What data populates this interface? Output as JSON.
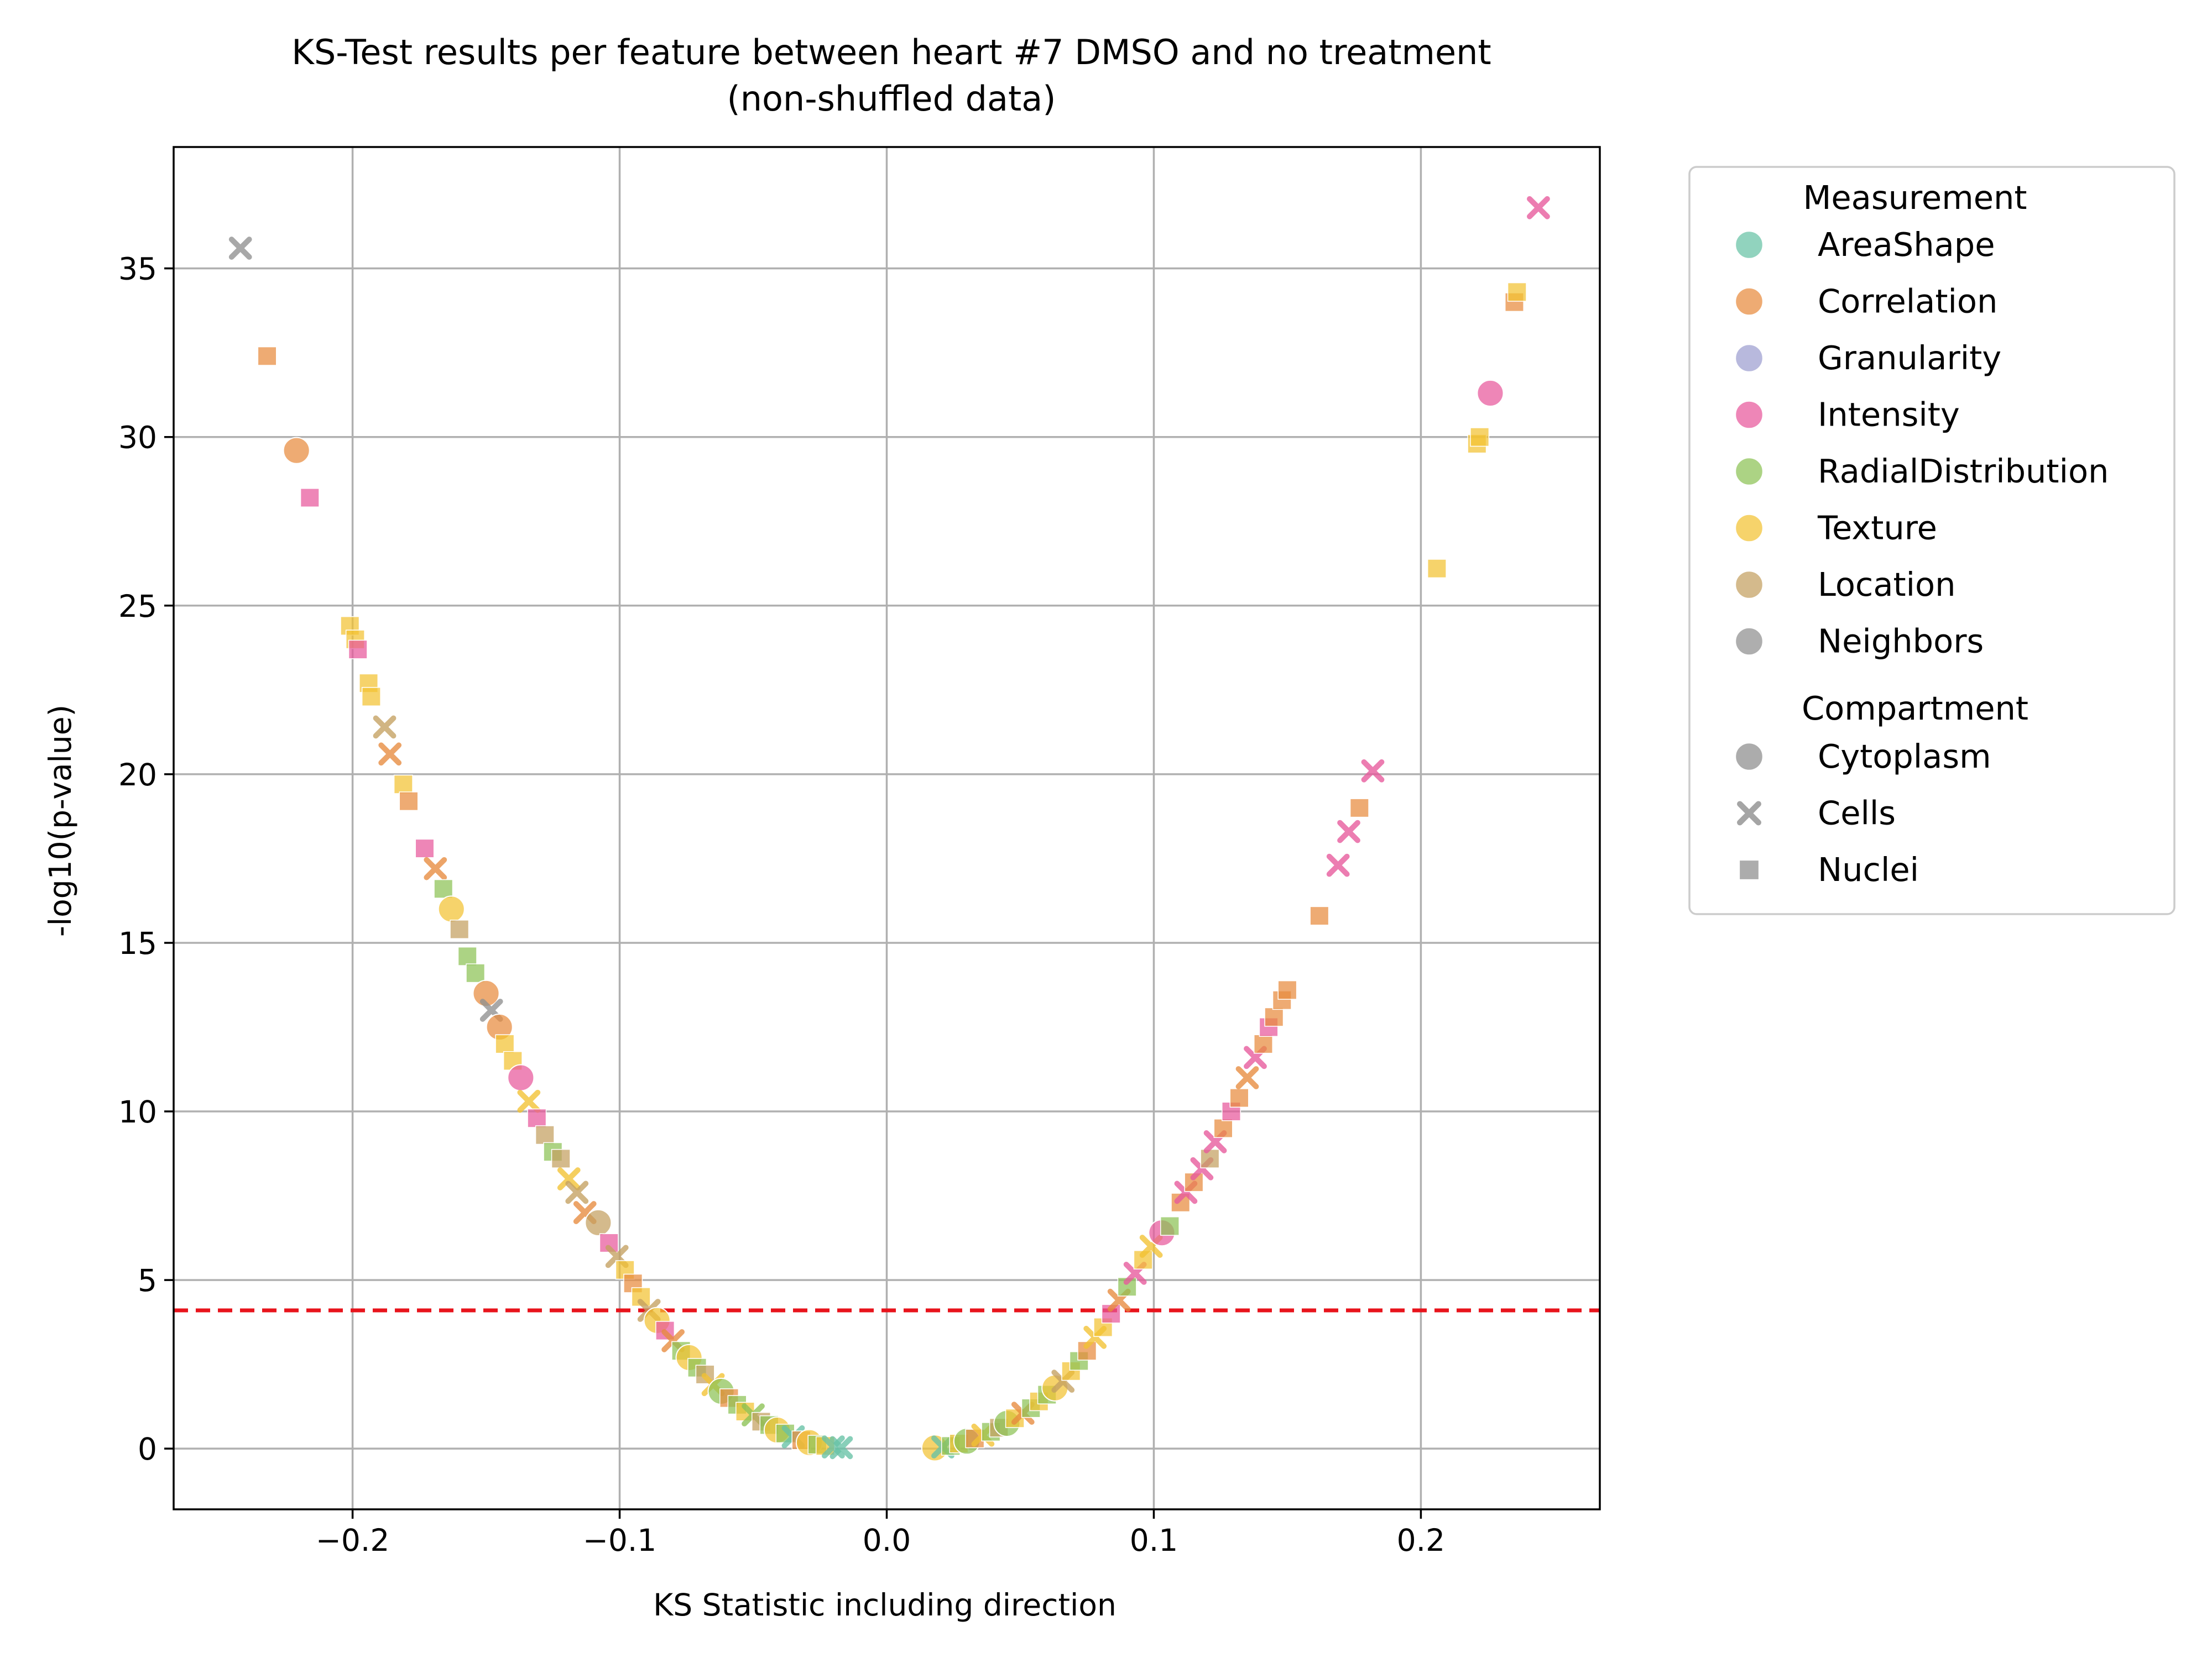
{
  "chart_data": {
    "type": "scatter",
    "title": "KS-Test results per feature between heart #7 DMSO and no treatment",
    "subtitle": "(non-shuffled data)",
    "xlabel": "KS Statistic including direction",
    "ylabel": "-log10(p-value)",
    "xlim": [
      -0.267,
      0.267
    ],
    "ylim": [
      -1.8,
      38.6
    ],
    "xticks": [
      -0.2,
      -0.1,
      0.0,
      0.1,
      0.2
    ],
    "xtick_labels": [
      "−0.2",
      "−0.1",
      "0.0",
      "0.1",
      "0.2"
    ],
    "yticks": [
      0,
      5,
      10,
      15,
      20,
      25,
      30,
      35
    ],
    "ytick_labels": [
      "0",
      "5",
      "10",
      "15",
      "20",
      "25",
      "30",
      "35"
    ],
    "grid": true,
    "threshold_line": {
      "y": 4.1,
      "color": "#e8141c",
      "style": "dashed"
    },
    "legend": {
      "placement": "outside-right",
      "measurement_title": "Measurement",
      "measurements": [
        {
          "name": "AreaShape",
          "color": "#66c2a5"
        },
        {
          "name": "Correlation",
          "color": "#e78a3d"
        },
        {
          "name": "Granularity",
          "color": "#9c9ed0"
        },
        {
          "name": "Intensity",
          "color": "#e7589b"
        },
        {
          "name": "RadialDistribution",
          "color": "#8cc255"
        },
        {
          "name": "Texture",
          "color": "#f2c232"
        },
        {
          "name": "Location",
          "color": "#c4a060"
        },
        {
          "name": "Neighbors",
          "color": "#8f8f8f"
        }
      ],
      "compartment_title": "Compartment",
      "compartments": [
        {
          "name": "Cytoplasm",
          "marker": "circle"
        },
        {
          "name": "Cells",
          "marker": "x"
        },
        {
          "name": "Nuclei",
          "marker": "square"
        }
      ],
      "marker_color": "#8c8c8c"
    },
    "points": [
      {
        "x": -0.242,
        "y": 35.6,
        "measurement": "Neighbors",
        "compartment": "Cells"
      },
      {
        "x": -0.232,
        "y": 32.4,
        "measurement": "Correlation",
        "compartment": "Nuclei"
      },
      {
        "x": -0.221,
        "y": 29.6,
        "measurement": "Correlation",
        "compartment": "Cytoplasm"
      },
      {
        "x": -0.216,
        "y": 28.2,
        "measurement": "Intensity",
        "compartment": "Nuclei"
      },
      {
        "x": -0.201,
        "y": 24.4,
        "measurement": "Texture",
        "compartment": "Nuclei"
      },
      {
        "x": -0.199,
        "y": 24.0,
        "measurement": "Texture",
        "compartment": "Nuclei"
      },
      {
        "x": -0.198,
        "y": 23.7,
        "measurement": "Intensity",
        "compartment": "Nuclei"
      },
      {
        "x": -0.194,
        "y": 22.7,
        "measurement": "Texture",
        "compartment": "Nuclei"
      },
      {
        "x": -0.193,
        "y": 22.3,
        "measurement": "Texture",
        "compartment": "Nuclei"
      },
      {
        "x": -0.188,
        "y": 21.4,
        "measurement": "Location",
        "compartment": "Cells"
      },
      {
        "x": -0.186,
        "y": 20.6,
        "measurement": "Correlation",
        "compartment": "Cells"
      },
      {
        "x": -0.181,
        "y": 19.7,
        "measurement": "Texture",
        "compartment": "Nuclei"
      },
      {
        "x": -0.179,
        "y": 19.2,
        "measurement": "Correlation",
        "compartment": "Nuclei"
      },
      {
        "x": -0.173,
        "y": 17.8,
        "measurement": "Intensity",
        "compartment": "Nuclei"
      },
      {
        "x": -0.169,
        "y": 17.2,
        "measurement": "Correlation",
        "compartment": "Cells"
      },
      {
        "x": -0.166,
        "y": 16.6,
        "measurement": "RadialDistribution",
        "compartment": "Nuclei"
      },
      {
        "x": -0.163,
        "y": 16.0,
        "measurement": "Texture",
        "compartment": "Cytoplasm"
      },
      {
        "x": -0.16,
        "y": 15.4,
        "measurement": "Location",
        "compartment": "Nuclei"
      },
      {
        "x": -0.157,
        "y": 14.6,
        "measurement": "RadialDistribution",
        "compartment": "Nuclei"
      },
      {
        "x": -0.154,
        "y": 14.1,
        "measurement": "RadialDistribution",
        "compartment": "Nuclei"
      },
      {
        "x": -0.15,
        "y": 13.5,
        "measurement": "Correlation",
        "compartment": "Cytoplasm"
      },
      {
        "x": -0.148,
        "y": 13.0,
        "measurement": "Neighbors",
        "compartment": "Cells"
      },
      {
        "x": -0.145,
        "y": 12.5,
        "measurement": "Correlation",
        "compartment": "Cytoplasm"
      },
      {
        "x": -0.143,
        "y": 12.0,
        "measurement": "Texture",
        "compartment": "Nuclei"
      },
      {
        "x": -0.14,
        "y": 11.5,
        "measurement": "Texture",
        "compartment": "Nuclei"
      },
      {
        "x": -0.137,
        "y": 11.0,
        "measurement": "Intensity",
        "compartment": "Cytoplasm"
      },
      {
        "x": -0.134,
        "y": 10.3,
        "measurement": "Texture",
        "compartment": "Cells"
      },
      {
        "x": -0.131,
        "y": 9.8,
        "measurement": "Intensity",
        "compartment": "Nuclei"
      },
      {
        "x": -0.128,
        "y": 9.3,
        "measurement": "Location",
        "compartment": "Nuclei"
      },
      {
        "x": -0.125,
        "y": 8.8,
        "measurement": "RadialDistribution",
        "compartment": "Nuclei"
      },
      {
        "x": -0.122,
        "y": 8.6,
        "measurement": "Location",
        "compartment": "Nuclei"
      },
      {
        "x": -0.119,
        "y": 8.0,
        "measurement": "Texture",
        "compartment": "Cells"
      },
      {
        "x": -0.116,
        "y": 7.6,
        "measurement": "Location",
        "compartment": "Cells"
      },
      {
        "x": -0.113,
        "y": 7.0,
        "measurement": "Correlation",
        "compartment": "Cells"
      },
      {
        "x": -0.108,
        "y": 6.7,
        "measurement": "Location",
        "compartment": "Cytoplasm"
      },
      {
        "x": -0.104,
        "y": 6.1,
        "measurement": "Intensity",
        "compartment": "Nuclei"
      },
      {
        "x": -0.101,
        "y": 5.7,
        "measurement": "Location",
        "compartment": "Cells"
      },
      {
        "x": -0.098,
        "y": 5.3,
        "measurement": "Texture",
        "compartment": "Nuclei"
      },
      {
        "x": -0.095,
        "y": 4.9,
        "measurement": "Correlation",
        "compartment": "Nuclei"
      },
      {
        "x": -0.092,
        "y": 4.5,
        "measurement": "Texture",
        "compartment": "Nuclei"
      },
      {
        "x": -0.089,
        "y": 4.1,
        "measurement": "Location",
        "compartment": "Cells"
      },
      {
        "x": -0.086,
        "y": 3.8,
        "measurement": "Texture",
        "compartment": "Cytoplasm"
      },
      {
        "x": -0.083,
        "y": 3.5,
        "measurement": "Intensity",
        "compartment": "Nuclei"
      },
      {
        "x": -0.08,
        "y": 3.2,
        "measurement": "Correlation",
        "compartment": "Cells"
      },
      {
        "x": -0.077,
        "y": 2.9,
        "measurement": "RadialDistribution",
        "compartment": "Nuclei"
      },
      {
        "x": -0.074,
        "y": 2.7,
        "measurement": "Texture",
        "compartment": "Cytoplasm"
      },
      {
        "x": -0.071,
        "y": 2.4,
        "measurement": "RadialDistribution",
        "compartment": "Nuclei"
      },
      {
        "x": -0.068,
        "y": 2.2,
        "measurement": "Location",
        "compartment": "Nuclei"
      },
      {
        "x": -0.065,
        "y": 1.9,
        "measurement": "Texture",
        "compartment": "Cells"
      },
      {
        "x": -0.062,
        "y": 1.7,
        "measurement": "RadialDistribution",
        "compartment": "Cytoplasm"
      },
      {
        "x": -0.059,
        "y": 1.5,
        "measurement": "Correlation",
        "compartment": "Nuclei"
      },
      {
        "x": -0.056,
        "y": 1.3,
        "measurement": "RadialDistribution",
        "compartment": "Nuclei"
      },
      {
        "x": -0.053,
        "y": 1.1,
        "measurement": "Texture",
        "compartment": "Nuclei"
      },
      {
        "x": -0.05,
        "y": 1.0,
        "measurement": "RadialDistribution",
        "compartment": "Cells"
      },
      {
        "x": -0.047,
        "y": 0.8,
        "measurement": "Location",
        "compartment": "Nuclei"
      },
      {
        "x": -0.044,
        "y": 0.7,
        "measurement": "RadialDistribution",
        "compartment": "Nuclei"
      },
      {
        "x": -0.041,
        "y": 0.55,
        "measurement": "Texture",
        "compartment": "Cytoplasm"
      },
      {
        "x": -0.038,
        "y": 0.45,
        "measurement": "RadialDistribution",
        "compartment": "Nuclei"
      },
      {
        "x": -0.035,
        "y": 0.35,
        "measurement": "AreaShape",
        "compartment": "Cells"
      },
      {
        "x": -0.032,
        "y": 0.25,
        "measurement": "Correlation",
        "compartment": "Nuclei"
      },
      {
        "x": -0.029,
        "y": 0.18,
        "measurement": "Texture",
        "compartment": "Cytoplasm"
      },
      {
        "x": -0.026,
        "y": 0.12,
        "measurement": "RadialDistribution",
        "compartment": "Nuclei"
      },
      {
        "x": -0.023,
        "y": 0.08,
        "measurement": "Texture",
        "compartment": "Nuclei"
      },
      {
        "x": -0.02,
        "y": 0.05,
        "measurement": "AreaShape",
        "compartment": "Cells"
      },
      {
        "x": -0.017,
        "y": 0.03,
        "measurement": "AreaShape",
        "compartment": "Cells"
      },
      {
        "x": 0.018,
        "y": 0.02,
        "measurement": "Texture",
        "compartment": "Cytoplasm"
      },
      {
        "x": 0.021,
        "y": 0.05,
        "measurement": "AreaShape",
        "compartment": "Cells"
      },
      {
        "x": 0.024,
        "y": 0.08,
        "measurement": "RadialDistribution",
        "compartment": "Nuclei"
      },
      {
        "x": 0.027,
        "y": 0.15,
        "measurement": "Texture",
        "compartment": "Nuclei"
      },
      {
        "x": 0.03,
        "y": 0.22,
        "measurement": "RadialDistribution",
        "compartment": "Cytoplasm"
      },
      {
        "x": 0.033,
        "y": 0.3,
        "measurement": "Correlation",
        "compartment": "Nuclei"
      },
      {
        "x": 0.036,
        "y": 0.4,
        "measurement": "Texture",
        "compartment": "Cells"
      },
      {
        "x": 0.039,
        "y": 0.5,
        "measurement": "RadialDistribution",
        "compartment": "Nuclei"
      },
      {
        "x": 0.042,
        "y": 0.62,
        "measurement": "Location",
        "compartment": "Nuclei"
      },
      {
        "x": 0.045,
        "y": 0.75,
        "measurement": "RadialDistribution",
        "compartment": "Cytoplasm"
      },
      {
        "x": 0.048,
        "y": 0.9,
        "measurement": "Texture",
        "compartment": "Nuclei"
      },
      {
        "x": 0.051,
        "y": 1.05,
        "measurement": "Correlation",
        "compartment": "Cells"
      },
      {
        "x": 0.054,
        "y": 1.2,
        "measurement": "RadialDistribution",
        "compartment": "Nuclei"
      },
      {
        "x": 0.057,
        "y": 1.4,
        "measurement": "Texture",
        "compartment": "Nuclei"
      },
      {
        "x": 0.06,
        "y": 1.6,
        "measurement": "RadialDistribution",
        "compartment": "Nuclei"
      },
      {
        "x": 0.063,
        "y": 1.8,
        "measurement": "Texture",
        "compartment": "Cytoplasm"
      },
      {
        "x": 0.066,
        "y": 2.0,
        "measurement": "Location",
        "compartment": "Cells"
      },
      {
        "x": 0.069,
        "y": 2.3,
        "measurement": "Texture",
        "compartment": "Nuclei"
      },
      {
        "x": 0.072,
        "y": 2.6,
        "measurement": "RadialDistribution",
        "compartment": "Nuclei"
      },
      {
        "x": 0.075,
        "y": 2.9,
        "measurement": "Correlation",
        "compartment": "Nuclei"
      },
      {
        "x": 0.078,
        "y": 3.3,
        "measurement": "Texture",
        "compartment": "Cells"
      },
      {
        "x": 0.081,
        "y": 3.6,
        "measurement": "Texture",
        "compartment": "Nuclei"
      },
      {
        "x": 0.084,
        "y": 4.0,
        "measurement": "Intensity",
        "compartment": "Nuclei"
      },
      {
        "x": 0.087,
        "y": 4.4,
        "measurement": "Correlation",
        "compartment": "Cells"
      },
      {
        "x": 0.09,
        "y": 4.8,
        "measurement": "RadialDistribution",
        "compartment": "Nuclei"
      },
      {
        "x": 0.093,
        "y": 5.2,
        "measurement": "Intensity",
        "compartment": "Cells"
      },
      {
        "x": 0.096,
        "y": 5.6,
        "measurement": "Texture",
        "compartment": "Nuclei"
      },
      {
        "x": 0.099,
        "y": 6.0,
        "measurement": "Texture",
        "compartment": "Cells"
      },
      {
        "x": 0.103,
        "y": 6.4,
        "measurement": "Intensity",
        "compartment": "Cytoplasm"
      },
      {
        "x": 0.106,
        "y": 6.6,
        "measurement": "RadialDistribution",
        "compartment": "Nuclei"
      },
      {
        "x": 0.11,
        "y": 7.3,
        "measurement": "Correlation",
        "compartment": "Nuclei"
      },
      {
        "x": 0.112,
        "y": 7.6,
        "measurement": "Intensity",
        "compartment": "Cells"
      },
      {
        "x": 0.115,
        "y": 7.9,
        "measurement": "Correlation",
        "compartment": "Nuclei"
      },
      {
        "x": 0.118,
        "y": 8.3,
        "measurement": "Intensity",
        "compartment": "Cells"
      },
      {
        "x": 0.121,
        "y": 8.6,
        "measurement": "Location",
        "compartment": "Nuclei"
      },
      {
        "x": 0.123,
        "y": 9.1,
        "measurement": "Intensity",
        "compartment": "Cells"
      },
      {
        "x": 0.126,
        "y": 9.5,
        "measurement": "Correlation",
        "compartment": "Nuclei"
      },
      {
        "x": 0.129,
        "y": 10.0,
        "measurement": "Intensity",
        "compartment": "Nuclei"
      },
      {
        "x": 0.132,
        "y": 10.4,
        "measurement": "Correlation",
        "compartment": "Nuclei"
      },
      {
        "x": 0.135,
        "y": 11.0,
        "measurement": "Correlation",
        "compartment": "Cells"
      },
      {
        "x": 0.138,
        "y": 11.6,
        "measurement": "Intensity",
        "compartment": "Cells"
      },
      {
        "x": 0.141,
        "y": 12.0,
        "measurement": "Correlation",
        "compartment": "Nuclei"
      },
      {
        "x": 0.143,
        "y": 12.5,
        "measurement": "Intensity",
        "compartment": "Nuclei"
      },
      {
        "x": 0.145,
        "y": 12.8,
        "measurement": "Correlation",
        "compartment": "Nuclei"
      },
      {
        "x": 0.148,
        "y": 13.3,
        "measurement": "Correlation",
        "compartment": "Nuclei"
      },
      {
        "x": 0.15,
        "y": 13.6,
        "measurement": "Correlation",
        "compartment": "Nuclei"
      },
      {
        "x": 0.162,
        "y": 15.8,
        "measurement": "Correlation",
        "compartment": "Nuclei"
      },
      {
        "x": 0.169,
        "y": 17.3,
        "measurement": "Intensity",
        "compartment": "Cells"
      },
      {
        "x": 0.173,
        "y": 18.3,
        "measurement": "Intensity",
        "compartment": "Cells"
      },
      {
        "x": 0.177,
        "y": 19.0,
        "measurement": "Correlation",
        "compartment": "Nuclei"
      },
      {
        "x": 0.182,
        "y": 20.1,
        "measurement": "Intensity",
        "compartment": "Cells"
      },
      {
        "x": 0.206,
        "y": 26.1,
        "measurement": "Texture",
        "compartment": "Nuclei"
      },
      {
        "x": 0.221,
        "y": 29.8,
        "measurement": "Texture",
        "compartment": "Nuclei"
      },
      {
        "x": 0.222,
        "y": 30.0,
        "measurement": "Texture",
        "compartment": "Nuclei"
      },
      {
        "x": 0.226,
        "y": 31.3,
        "measurement": "Intensity",
        "compartment": "Cytoplasm"
      },
      {
        "x": 0.235,
        "y": 34.0,
        "measurement": "Correlation",
        "compartment": "Nuclei"
      },
      {
        "x": 0.236,
        "y": 34.3,
        "measurement": "Texture",
        "compartment": "Nuclei"
      },
      {
        "x": 0.244,
        "y": 36.8,
        "measurement": "Intensity",
        "compartment": "Cells"
      }
    ]
  }
}
